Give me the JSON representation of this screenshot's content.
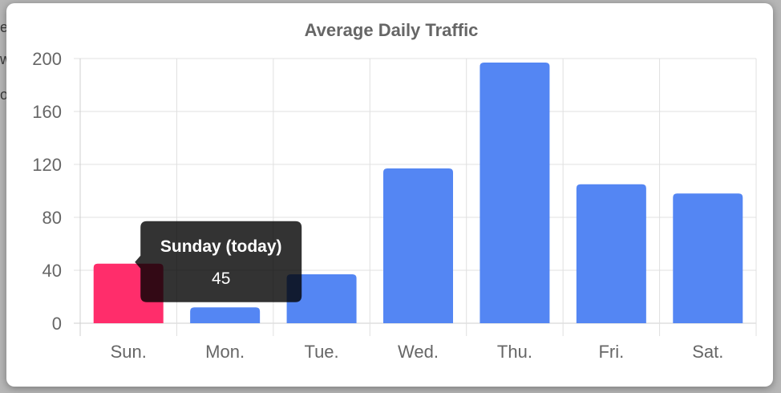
{
  "background": {
    "fragments": [
      "e",
      "w",
      "o"
    ]
  },
  "chart_data": {
    "type": "bar",
    "title": "Average Daily Traffic",
    "categories": [
      "Sun.",
      "Mon.",
      "Tue.",
      "Wed.",
      "Thu.",
      "Fri.",
      "Sat."
    ],
    "values": [
      45,
      12,
      37,
      117,
      197,
      105,
      98
    ],
    "ylim": [
      0,
      200
    ],
    "yticks": [
      0,
      40,
      80,
      120,
      160,
      200
    ],
    "grid": true,
    "colors": {
      "highlight": "#ff2d6b",
      "bar": "#5486f3",
      "grid": "#e0e0e0",
      "axis_text": "#666666",
      "title": "#666666"
    },
    "highlight_index": 0,
    "tooltip": {
      "title": "Sunday (today)",
      "value": "45",
      "target_index": 0
    }
  }
}
